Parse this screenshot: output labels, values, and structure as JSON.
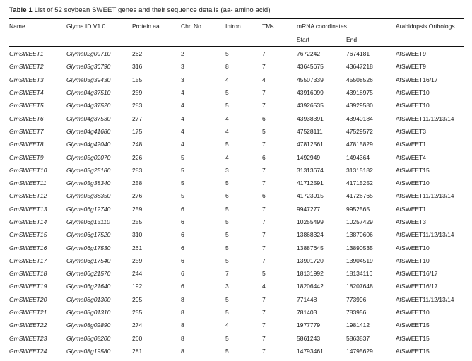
{
  "page": {
    "background": "#ffffff",
    "text_color": "#1c1c1c",
    "rule_color": "#111111"
  },
  "table": {
    "title": {
      "label": "Table 1",
      "description": " List of 52 soybean SWEET genes and their sequence details (aa- amino acid)"
    },
    "headers": {
      "name": "Name",
      "glyma_id": "Glyma ID V1.0",
      "protein_aa": "Protein aa",
      "chr_no": "Chr. No.",
      "intron": "Intron",
      "tms": "TMs",
      "mrna_coordinates": "mRNA coordinates",
      "start": "Start",
      "end": "End",
      "orthologs": "Arabidopsis Orthologs"
    },
    "rows": [
      {
        "name": "GmSWEET1",
        "glyma_id": "Glyma02g09710",
        "protein_aa": "262",
        "chr_no": "2",
        "intron": "5",
        "tms": "7",
        "start": "7672242",
        "end": "7674181",
        "orthologs": "AtSWEET9"
      },
      {
        "name": "GmSWEET2",
        "glyma_id": "Glyma03g36790",
        "protein_aa": "316",
        "chr_no": "3",
        "intron": "8",
        "tms": "7",
        "start": "43645675",
        "end": "43647218",
        "orthologs": "AtSWEET9"
      },
      {
        "name": "GmSWEET3",
        "glyma_id": "Glyma03g39430",
        "protein_aa": "155",
        "chr_no": "3",
        "intron": "4",
        "tms": "4",
        "start": "45507339",
        "end": "45508526",
        "orthologs": "AtSWEET16/17"
      },
      {
        "name": "GmSWEET4",
        "glyma_id": "Glyma04g37510",
        "protein_aa": "259",
        "chr_no": "4",
        "intron": "5",
        "tms": "7",
        "start": "43916099",
        "end": "43918975",
        "orthologs": "AtSWEET10"
      },
      {
        "name": "GmSWEET5",
        "glyma_id": "Glyma04g37520",
        "protein_aa": "283",
        "chr_no": "4",
        "intron": "5",
        "tms": "7",
        "start": "43926535",
        "end": "43929580",
        "orthologs": "AtSWEET10"
      },
      {
        "name": "GmSWEET6",
        "glyma_id": "Glyma04g37530",
        "protein_aa": "277",
        "chr_no": "4",
        "intron": "4",
        "tms": "6",
        "start": "43938391",
        "end": "43940184",
        "orthologs": "AtSWEET11/12/13/14"
      },
      {
        "name": "GmSWEET7",
        "glyma_id": "Glyma04g41680",
        "protein_aa": "175",
        "chr_no": "4",
        "intron": "4",
        "tms": "5",
        "start": "47528111",
        "end": "47529572",
        "orthologs": "AtSWEET3"
      },
      {
        "name": "GmSWEET8",
        "glyma_id": "Glyma04g42040",
        "protein_aa": "248",
        "chr_no": "4",
        "intron": "5",
        "tms": "7",
        "start": "47812561",
        "end": "47815829",
        "orthologs": "AtSWEET1"
      },
      {
        "name": "GmSWEET9",
        "glyma_id": "Glyma05g02070",
        "protein_aa": "226",
        "chr_no": "5",
        "intron": "4",
        "tms": "6",
        "start": "1492949",
        "end": "1494364",
        "orthologs": "AtSWEET4"
      },
      {
        "name": "GmSWEET10",
        "glyma_id": "Glyma05g25180",
        "protein_aa": "283",
        "chr_no": "5",
        "intron": "3",
        "tms": "7",
        "start": "31313674",
        "end": "31315182",
        "orthologs": "AtSWEET15"
      },
      {
        "name": "GmSWEET11",
        "glyma_id": "Glyma05g38340",
        "protein_aa": "258",
        "chr_no": "5",
        "intron": "5",
        "tms": "7",
        "start": "41712591",
        "end": "41715252",
        "orthologs": "AtSWEET10"
      },
      {
        "name": "GmSWEET12",
        "glyma_id": "Glyma05g38350",
        "protein_aa": "276",
        "chr_no": "5",
        "intron": "6",
        "tms": "6",
        "start": "41723915",
        "end": "41726765",
        "orthologs": "AtSWEET11/12/13/14"
      },
      {
        "name": "GmSWEET13",
        "glyma_id": "Glyma06g12740",
        "protein_aa": "259",
        "chr_no": "6",
        "intron": "5",
        "tms": "7",
        "start": "9947277",
        "end": "9952565",
        "orthologs": "AtSWEET1"
      },
      {
        "name": "GmSWEET14",
        "glyma_id": "Glyma06g13110",
        "protein_aa": "255",
        "chr_no": "6",
        "intron": "5",
        "tms": "7",
        "start": "10255499",
        "end": "10257429",
        "orthologs": "AtSWEET3"
      },
      {
        "name": "GmSWEET15",
        "glyma_id": "Glyma06g17520",
        "protein_aa": "310",
        "chr_no": "6",
        "intron": "5",
        "tms": "7",
        "start": "13868324",
        "end": "13870606",
        "orthologs": "AtSWEET11/12/13/14"
      },
      {
        "name": "GmSWEET16",
        "glyma_id": "Glyma06g17530",
        "protein_aa": "261",
        "chr_no": "6",
        "intron": "5",
        "tms": "7",
        "start": "13887645",
        "end": "13890535",
        "orthologs": "AtSWEET10"
      },
      {
        "name": "GmSWEET17",
        "glyma_id": "Glyma06g17540",
        "protein_aa": "259",
        "chr_no": "6",
        "intron": "5",
        "tms": "7",
        "start": "13901720",
        "end": "13904519",
        "orthologs": "AtSWEET10"
      },
      {
        "name": "GmSWEET18",
        "glyma_id": "Glyma06g21570",
        "protein_aa": "244",
        "chr_no": "6",
        "intron": "7",
        "tms": "5",
        "start": "18131992",
        "end": "18134116",
        "orthologs": "AtSWEET16/17"
      },
      {
        "name": "GmSWEET19",
        "glyma_id": "Glyma06g21640",
        "protein_aa": "192",
        "chr_no": "6",
        "intron": "3",
        "tms": "4",
        "start": "18206442",
        "end": "18207648",
        "orthologs": "AtSWEET16/17"
      },
      {
        "name": "GmSWEET20",
        "glyma_id": "Glyma08g01300",
        "protein_aa": "295",
        "chr_no": "8",
        "intron": "5",
        "tms": "7",
        "start": "771448",
        "end": "773996",
        "orthologs": "AtSWEET11/12/13/14"
      },
      {
        "name": "GmSWEET21",
        "glyma_id": "Glyma08g01310",
        "protein_aa": "255",
        "chr_no": "8",
        "intron": "5",
        "tms": "7",
        "start": "781403",
        "end": "783956",
        "orthologs": "AtSWEET10"
      },
      {
        "name": "GmSWEET22",
        "glyma_id": "Glyma08g02890",
        "protein_aa": "274",
        "chr_no": "8",
        "intron": "4",
        "tms": "7",
        "start": "1977779",
        "end": "1981412",
        "orthologs": "AtSWEET15"
      },
      {
        "name": "GmSWEET23",
        "glyma_id": "Glyma08g08200",
        "protein_aa": "260",
        "chr_no": "8",
        "intron": "5",
        "tms": "7",
        "start": "5861243",
        "end": "5863837",
        "orthologs": "AtSWEET15"
      },
      {
        "name": "GmSWEET24",
        "glyma_id": "Glyma08g19580",
        "protein_aa": "281",
        "chr_no": "8",
        "intron": "5",
        "tms": "7",
        "start": "14793461",
        "end": "14795629",
        "orthologs": "AtSWEET15"
      }
    ]
  }
}
